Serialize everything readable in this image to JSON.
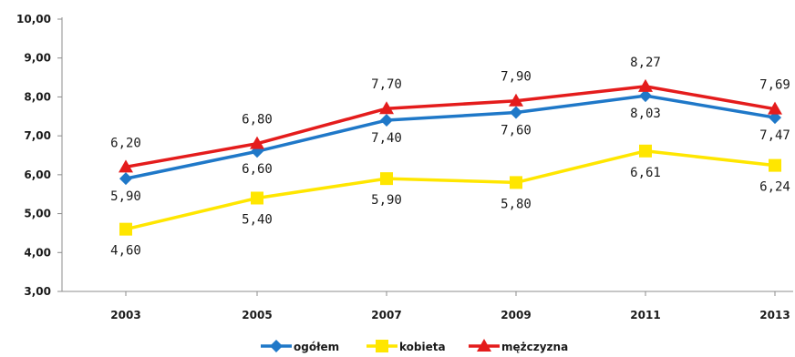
{
  "chart_data": {
    "type": "line",
    "categories": [
      "2003",
      "2005",
      "2007",
      "2009",
      "2011",
      "2013"
    ],
    "ylim": [
      3,
      10
    ],
    "yticks": [
      "3,00",
      "4,00",
      "5,00",
      "6,00",
      "7,00",
      "8,00",
      "9,00",
      "10,00"
    ],
    "grid": false,
    "legend_position": "bottom",
    "series": [
      {
        "name": "ogółem",
        "color": "#1f78c8",
        "marker": "diamond",
        "values": [
          5.9,
          6.6,
          7.4,
          7.6,
          8.03,
          7.47
        ],
        "labels": [
          "5,90",
          "6,60",
          "7,40",
          "7,60",
          "8,03",
          "7,47"
        ]
      },
      {
        "name": "kobieta",
        "color": "#ffe600",
        "marker": "square",
        "values": [
          4.6,
          5.4,
          5.9,
          5.8,
          6.61,
          6.24
        ],
        "labels": [
          "4,60",
          "5,40",
          "5,90",
          "5,80",
          "6,61",
          "6,24"
        ]
      },
      {
        "name": "mężczyzna",
        "color": "#e41c1c",
        "marker": "triangle",
        "values": [
          6.2,
          6.8,
          7.7,
          7.9,
          8.27,
          7.69
        ],
        "labels": [
          "6,20",
          "6,80",
          "7,70",
          "7,90",
          "8,27",
          "7,69"
        ]
      }
    ]
  }
}
